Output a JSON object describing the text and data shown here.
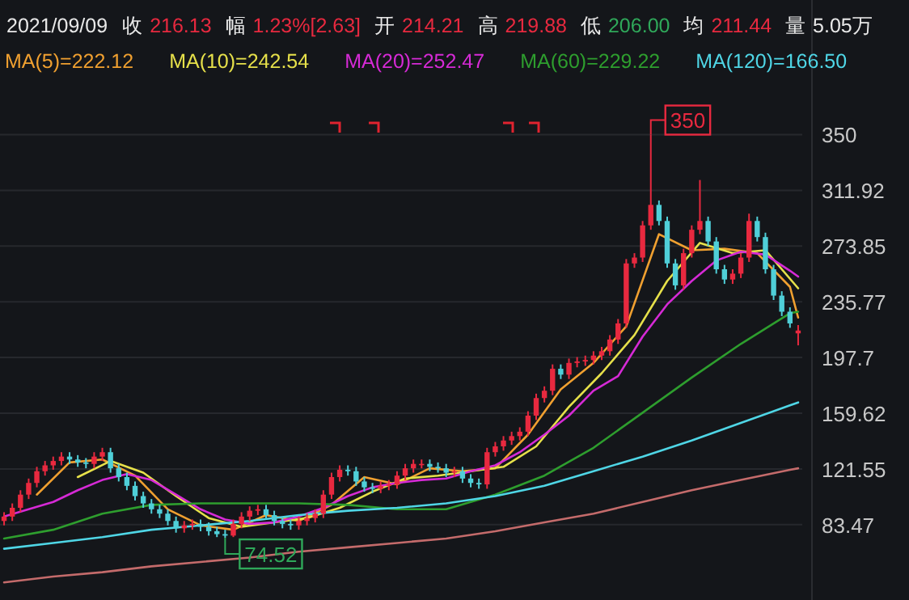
{
  "chart_data": {
    "type": "candlestick",
    "title": "2021/09/09",
    "annotations": [
      "收",
      "216.13",
      "幅",
      "1.23%[2.63]",
      "开",
      "214.21",
      "高",
      "219.88",
      "低",
      "206.00",
      "均",
      "211.44",
      "量",
      "5.05万",
      "350",
      "74.52"
    ],
    "categories": [
      null,
      null,
      null,
      null,
      null,
      null,
      null,
      null,
      null,
      null,
      null,
      null,
      null,
      null,
      null,
      null,
      null,
      null,
      null,
      null,
      null,
      null,
      null,
      null,
      null,
      null,
      null,
      null,
      null,
      null,
      null,
      null,
      null,
      null,
      null,
      null,
      null,
      null,
      null,
      null,
      null,
      null,
      null,
      null,
      null,
      null,
      null,
      null,
      null,
      null,
      null,
      null,
      null,
      null,
      null,
      null,
      null,
      null,
      null,
      null,
      null,
      null,
      null,
      null,
      null,
      null,
      null,
      null,
      null,
      null,
      null,
      null,
      null,
      null,
      null,
      null,
      null,
      null,
      null,
      null,
      null,
      null,
      null,
      null,
      null,
      null,
      null,
      null,
      null,
      null,
      null,
      null,
      null,
      null,
      null,
      null,
      null,
      null
    ],
    "ohlc": [
      [
        86,
        92,
        83,
        89
      ],
      [
        89,
        98,
        86,
        95
      ],
      [
        95,
        107,
        92,
        104
      ],
      [
        104,
        115,
        101,
        112
      ],
      [
        112,
        123,
        109,
        120
      ],
      [
        120,
        127,
        117,
        124
      ],
      [
        124,
        130,
        121,
        127
      ],
      [
        127,
        133,
        124,
        130
      ],
      [
        130,
        133,
        125,
        128
      ],
      [
        128,
        131,
        123,
        126
      ],
      [
        126,
        129,
        122,
        125
      ],
      [
        125,
        133,
        122,
        130
      ],
      [
        130,
        136,
        127,
        133
      ],
      [
        133,
        136,
        119,
        122
      ],
      [
        122,
        125,
        113,
        116
      ],
      [
        116,
        119,
        107,
        110
      ],
      [
        110,
        113,
        100,
        103
      ],
      [
        103,
        106,
        95,
        98
      ],
      [
        98,
        101,
        91,
        94
      ],
      [
        94,
        97,
        88,
        91
      ],
      [
        91,
        94,
        83,
        86
      ],
      [
        86,
        89,
        78,
        81
      ],
      [
        81,
        86,
        78,
        83
      ],
      [
        83,
        87,
        80,
        84
      ],
      [
        84,
        87,
        79,
        82
      ],
      [
        82,
        85,
        76,
        79
      ],
      [
        79,
        82,
        75,
        77
      ],
      [
        77,
        80,
        74.52,
        76
      ],
      [
        76,
        87,
        75,
        84
      ],
      [
        84,
        92,
        81,
        89
      ],
      [
        89,
        96,
        86,
        93
      ],
      [
        93,
        97,
        90,
        94
      ],
      [
        94,
        97,
        87,
        90
      ],
      [
        90,
        93,
        83,
        86
      ],
      [
        86,
        89,
        81,
        84
      ],
      [
        84,
        87,
        80,
        83
      ],
      [
        83,
        89,
        80,
        86
      ],
      [
        86,
        91,
        83,
        88
      ],
      [
        88,
        94,
        85,
        91
      ],
      [
        91,
        107,
        88,
        104
      ],
      [
        104,
        119,
        101,
        116
      ],
      [
        116,
        124,
        113,
        121
      ],
      [
        121,
        124,
        117,
        120
      ],
      [
        120,
        123,
        110,
        113
      ],
      [
        113,
        116,
        106,
        109
      ],
      [
        109,
        112,
        105,
        108
      ],
      [
        108,
        113,
        105,
        110
      ],
      [
        110,
        114,
        107,
        111
      ],
      [
        111,
        120,
        108,
        117
      ],
      [
        117,
        125,
        114,
        122
      ],
      [
        122,
        128,
        119,
        125
      ],
      [
        125,
        128,
        122,
        125
      ],
      [
        125,
        128,
        120,
        123
      ],
      [
        123,
        126,
        119,
        122
      ],
      [
        122,
        125,
        116,
        119
      ],
      [
        119,
        123,
        116,
        120
      ],
      [
        120,
        123,
        112,
        115
      ],
      [
        115,
        118,
        109,
        112
      ],
      [
        112,
        115,
        108,
        111
      ],
      [
        111,
        136,
        108,
        133
      ],
      [
        133,
        140,
        130,
        137
      ],
      [
        137,
        144,
        134,
        141
      ],
      [
        141,
        147,
        138,
        144
      ],
      [
        144,
        150,
        141,
        147
      ],
      [
        147,
        161,
        144,
        158
      ],
      [
        158,
        173,
        155,
        170
      ],
      [
        170,
        178,
        167,
        175
      ],
      [
        175,
        193,
        172,
        190
      ],
      [
        190,
        193,
        183,
        186
      ],
      [
        186,
        197,
        183,
        194
      ],
      [
        194,
        198,
        191,
        195
      ],
      [
        195,
        199,
        192,
        196
      ],
      [
        196,
        202,
        193,
        199
      ],
      [
        199,
        205,
        196,
        202
      ],
      [
        202,
        213,
        199,
        210
      ],
      [
        210,
        224,
        207,
        221
      ],
      [
        221,
        265,
        218,
        262
      ],
      [
        262,
        269,
        259,
        266
      ],
      [
        266,
        291,
        263,
        288
      ],
      [
        288,
        350,
        285,
        302
      ],
      [
        302,
        305,
        288,
        291
      ],
      [
        291,
        294,
        259,
        262
      ],
      [
        262,
        265,
        244,
        247
      ],
      [
        247,
        272,
        244,
        269
      ],
      [
        269,
        288,
        266,
        285
      ],
      [
        285,
        319,
        282,
        291
      ],
      [
        291,
        294,
        274,
        277
      ],
      [
        277,
        280,
        255,
        258
      ],
      [
        258,
        261,
        248,
        251
      ],
      [
        251,
        258,
        248,
        255
      ],
      [
        255,
        269,
        252,
        266
      ],
      [
        266,
        296,
        263,
        291
      ],
      [
        291,
        294,
        277,
        280
      ],
      [
        280,
        283,
        255,
        258
      ],
      [
        258,
        261,
        237,
        240
      ],
      [
        240,
        243,
        226,
        229
      ],
      [
        229,
        232,
        218,
        221
      ],
      [
        214.21,
        219.88,
        206,
        216.13
      ]
    ],
    "series": [
      {
        "type": "line",
        "name": "MA(5)=222.12",
        "color": "#f0a030",
        "values": [
          null,
          null,
          null,
          null,
          104,
          null,
          null,
          null,
          126,
          null,
          null,
          null,
          128,
          null,
          null,
          null,
          117,
          null,
          null,
          null,
          94,
          null,
          null,
          null,
          83,
          null,
          null,
          null,
          80,
          null,
          null,
          null,
          90,
          null,
          null,
          null,
          86,
          null,
          null,
          null,
          97,
          null,
          null,
          null,
          116,
          null,
          null,
          null,
          111,
          null,
          null,
          null,
          122,
          null,
          null,
          null,
          120,
          null,
          null,
          null,
          122,
          null,
          null,
          null,
          145,
          null,
          null,
          null,
          176,
          null,
          null,
          null,
          194,
          null,
          null,
          null,
          219,
          null,
          null,
          null,
          282,
          null,
          null,
          null,
          271,
          null,
          null,
          null,
          272,
          null,
          null,
          null,
          269,
          null,
          null,
          null,
          246,
          225
        ]
      },
      {
        "type": "line",
        "name": "MA(10)=242.54",
        "color": "#e6e04a",
        "values": [
          null,
          null,
          null,
          null,
          null,
          null,
          null,
          null,
          null,
          116,
          null,
          null,
          null,
          127,
          null,
          null,
          null,
          119,
          null,
          null,
          null,
          103,
          null,
          null,
          null,
          88,
          null,
          null,
          null,
          82,
          null,
          null,
          null,
          85,
          null,
          null,
          null,
          88,
          null,
          null,
          null,
          95,
          null,
          null,
          null,
          106,
          null,
          null,
          null,
          115,
          null,
          null,
          null,
          117,
          null,
          null,
          null,
          120,
          null,
          null,
          null,
          123,
          null,
          null,
          null,
          137,
          null,
          null,
          null,
          164,
          null,
          null,
          null,
          187,
          null,
          null,
          null,
          213,
          null,
          null,
          null,
          250,
          null,
          null,
          null,
          276,
          null,
          null,
          null,
          269,
          null,
          null,
          null,
          271,
          null,
          null,
          null,
          245
        ]
      },
      {
        "type": "line",
        "name": "MA(20)=252.47",
        "color": "#d62ad6",
        "values": [
          89,
          null,
          null,
          94,
          null,
          null,
          99,
          null,
          null,
          107,
          null,
          null,
          114,
          null,
          null,
          118,
          null,
          null,
          114,
          null,
          null,
          104,
          null,
          null,
          94,
          null,
          null,
          87,
          null,
          null,
          84,
          null,
          null,
          85,
          null,
          null,
          89,
          null,
          null,
          95,
          null,
          null,
          103,
          null,
          null,
          109,
          null,
          null,
          112,
          null,
          null,
          114,
          null,
          null,
          115,
          null,
          null,
          120,
          null,
          null,
          124,
          null,
          null,
          133,
          null,
          null,
          145,
          null,
          null,
          158,
          null,
          null,
          175,
          null,
          null,
          185,
          null,
          null,
          212,
          null,
          null,
          234,
          null,
          null,
          250,
          null,
          null,
          264,
          null,
          null,
          270,
          null,
          null,
          268,
          null,
          null,
          257,
          253
        ]
      },
      {
        "type": "line",
        "name": "MA(60)=229.22",
        "color": "#2e9e2e",
        "values": [
          74,
          null,
          null,
          null,
          null,
          null,
          80,
          null,
          null,
          null,
          null,
          null,
          91,
          null,
          null,
          null,
          null,
          null,
          97,
          null,
          null,
          null,
          null,
          null,
          98,
          null,
          null,
          null,
          null,
          null,
          98,
          null,
          null,
          null,
          null,
          null,
          98,
          null,
          null,
          null,
          null,
          null,
          97,
          null,
          null,
          null,
          null,
          null,
          94,
          null,
          null,
          null,
          null,
          null,
          94,
          null,
          null,
          null,
          null,
          null,
          104,
          null,
          null,
          null,
          null,
          null,
          117,
          null,
          null,
          null,
          null,
          null,
          136,
          null,
          null,
          null,
          null,
          null,
          160,
          null,
          null,
          null,
          null,
          null,
          184,
          null,
          null,
          null,
          null,
          null,
          207,
          null,
          null,
          null,
          null,
          null,
          228,
          229
        ]
      },
      {
        "type": "line",
        "name": "MA(120)=166.50",
        "color": "#4fd6e6",
        "values": [
          67,
          null,
          null,
          null,
          null,
          null,
          71,
          null,
          null,
          null,
          null,
          null,
          75,
          null,
          null,
          null,
          null,
          null,
          80,
          null,
          null,
          null,
          null,
          null,
          83,
          null,
          null,
          null,
          null,
          null,
          86,
          null,
          null,
          null,
          null,
          null,
          90,
          null,
          null,
          null,
          null,
          null,
          93,
          null,
          null,
          null,
          null,
          null,
          95,
          null,
          null,
          null,
          null,
          null,
          98,
          null,
          null,
          null,
          null,
          null,
          103,
          null,
          null,
          null,
          null,
          null,
          110,
          null,
          null,
          null,
          null,
          null,
          120,
          null,
          null,
          null,
          null,
          null,
          130,
          null,
          null,
          null,
          null,
          null,
          141,
          null,
          null,
          null,
          null,
          null,
          153,
          null,
          null,
          null,
          null,
          null,
          165,
          167
        ]
      },
      {
        "type": "line",
        "color": "#c46b6b",
        "values": [
          44,
          null,
          null,
          null,
          null,
          null,
          48,
          null,
          null,
          null,
          null,
          null,
          51,
          null,
          null,
          null,
          null,
          null,
          55,
          null,
          null,
          null,
          null,
          null,
          58,
          null,
          null,
          null,
          null,
          null,
          61,
          null,
          null,
          null,
          null,
          null,
          65,
          null,
          null,
          null,
          null,
          null,
          68,
          null,
          null,
          null,
          null,
          null,
          71,
          null,
          null,
          null,
          null,
          null,
          74,
          null,
          null,
          null,
          null,
          null,
          79,
          null,
          null,
          null,
          null,
          null,
          85,
          null,
          null,
          null,
          null,
          null,
          91,
          null,
          null,
          null,
          null,
          null,
          99,
          null,
          null,
          null,
          null,
          null,
          107,
          null,
          null,
          null,
          null,
          null,
          114,
          null,
          null,
          null,
          null,
          null,
          121,
          122
        ]
      }
    ],
    "ylim": [
      32,
      442
    ],
    "yticks": [
      350,
      311.92,
      273.85,
      235.77,
      197.7,
      159.62,
      121.55,
      83.47
    ],
    "grid": "y",
    "legend": "top"
  }
}
